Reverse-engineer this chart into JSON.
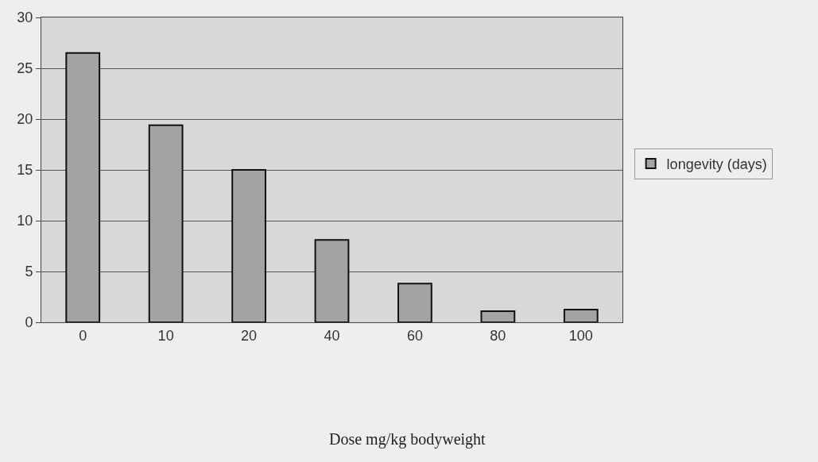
{
  "chart_data": {
    "type": "bar",
    "annotations": [
      "Dose mg/kg bodyweight"
    ],
    "categories": [
      "0",
      "10",
      "20",
      "40",
      "60",
      "80",
      "100"
    ],
    "series": [
      {
        "name": "longevity (days)",
        "color": "#a3a3a3",
        "values": [
          26.5,
          19.4,
          15.0,
          8.1,
          3.8,
          1.1,
          1.25
        ]
      }
    ],
    "ylim": [
      0,
      30
    ],
    "yticks": [
      0,
      5,
      10,
      15,
      20,
      25,
      30
    ],
    "grid": "y",
    "legend": "right"
  }
}
